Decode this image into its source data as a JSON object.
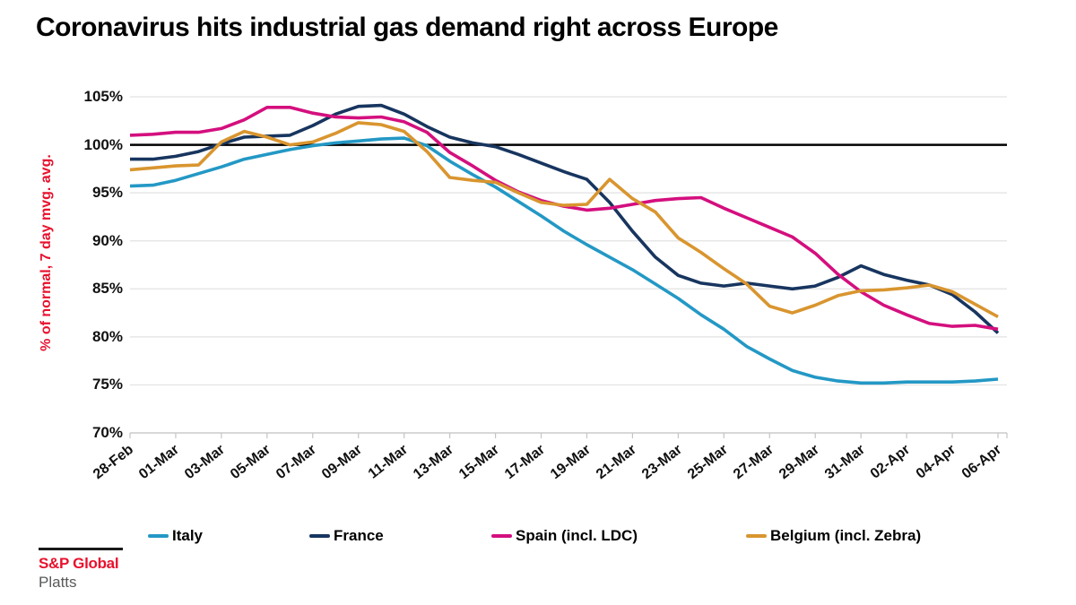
{
  "title": "Coronavirus hits industrial gas demand right across Europe",
  "colors": {
    "italy": "#2398c5",
    "france": "#17355f",
    "spain": "#d40f7e",
    "belgium": "#d9952f",
    "accent_red": "#e8112d",
    "reference_line": "#000000",
    "gridline": "#e2e2e2",
    "axis": "#c4c4c4"
  },
  "y_axis": {
    "label": "% of normal, 7 day mvg. avg.",
    "ticks": [
      "105%",
      "100%",
      "95%",
      "90%",
      "85%",
      "80%",
      "75%",
      "70%"
    ]
  },
  "x_axis": {
    "labels": [
      "28-Feb",
      "01-Mar",
      "03-Mar",
      "05-Mar",
      "07-Mar",
      "09-Mar",
      "11-Mar",
      "13-Mar",
      "15-Mar",
      "17-Mar",
      "19-Mar",
      "21-Mar",
      "23-Mar",
      "25-Mar",
      "27-Mar",
      "29-Mar",
      "31-Mar",
      "02-Apr",
      "04-Apr",
      "06-Apr"
    ]
  },
  "legend": [
    {
      "key": "italy",
      "label": "Italy"
    },
    {
      "key": "france",
      "label": "France"
    },
    {
      "key": "spain",
      "label": "Spain (incl. LDC)"
    },
    {
      "key": "belgium",
      "label": "Belgium (incl. Zebra)"
    }
  ],
  "branding": {
    "line1": "S&P Global",
    "line2": "Platts"
  },
  "chart_data": {
    "type": "line",
    "title": "Coronavirus hits industrial gas demand right across Europe",
    "ylabel": "% of normal, 7 day mvg. avg.",
    "ylim": [
      70,
      105
    ],
    "reference_line": 100,
    "grid": "horizontal",
    "legend_position": "bottom",
    "dates": [
      "28-Feb",
      "29-Feb",
      "01-Mar",
      "02-Mar",
      "03-Mar",
      "04-Mar",
      "05-Mar",
      "06-Mar",
      "07-Mar",
      "08-Mar",
      "09-Mar",
      "10-Mar",
      "11-Mar",
      "12-Mar",
      "13-Mar",
      "14-Mar",
      "15-Mar",
      "16-Mar",
      "17-Mar",
      "18-Mar",
      "19-Mar",
      "20-Mar",
      "21-Mar",
      "22-Mar",
      "23-Mar",
      "24-Mar",
      "25-Mar",
      "26-Mar",
      "27-Mar",
      "28-Mar",
      "29-Mar",
      "30-Mar",
      "31-Mar",
      "01-Apr",
      "02-Apr",
      "03-Apr",
      "04-Apr",
      "05-Apr",
      "06-Apr"
    ],
    "series": [
      {
        "name": "Italy",
        "key": "italy",
        "values": [
          95.7,
          95.8,
          96.3,
          97.0,
          97.7,
          98.5,
          99.0,
          99.5,
          99.9,
          100.2,
          100.4,
          100.6,
          100.7,
          99.9,
          98.3,
          96.9,
          95.6,
          94.1,
          92.6,
          91.0,
          89.6,
          88.3,
          87.0,
          85.5,
          84.0,
          82.3,
          80.8,
          79.0,
          77.7,
          76.5,
          75.8,
          75.4,
          75.2,
          75.2,
          75.3,
          75.3,
          75.3,
          75.4,
          75.6
        ]
      },
      {
        "name": "France",
        "key": "france",
        "values": [
          98.5,
          98.5,
          98.8,
          99.3,
          100.1,
          100.8,
          100.9,
          101.0,
          102.0,
          103.2,
          104.0,
          104.1,
          103.2,
          101.9,
          100.8,
          100.2,
          99.8,
          99.0,
          98.1,
          97.2,
          96.4,
          94.0,
          91.0,
          88.3,
          86.4,
          85.6,
          85.3,
          85.6,
          85.3,
          85.0,
          85.3,
          86.2,
          87.4,
          86.5,
          85.9,
          85.4,
          84.4,
          82.6,
          80.4
        ]
      },
      {
        "name": "Spain (incl. LDC)",
        "key": "spain",
        "values": [
          101.0,
          101.1,
          101.3,
          101.3,
          101.7,
          102.6,
          103.9,
          103.9,
          103.3,
          102.9,
          102.8,
          102.9,
          102.4,
          101.3,
          99.2,
          97.8,
          96.3,
          95.1,
          94.2,
          93.6,
          93.2,
          93.4,
          93.8,
          94.2,
          94.4,
          94.5,
          93.4,
          92.4,
          91.4,
          90.4,
          88.7,
          86.5,
          84.7,
          83.3,
          82.3,
          81.4,
          81.1,
          81.2,
          80.8
        ]
      },
      {
        "name": "Belgium (incl. Zebra)",
        "key": "belgium",
        "values": [
          97.4,
          97.6,
          97.8,
          97.9,
          100.3,
          101.4,
          100.8,
          100.0,
          100.3,
          101.2,
          102.3,
          102.1,
          101.4,
          99.3,
          96.6,
          96.3,
          96.1,
          95.0,
          94.0,
          93.7,
          93.8,
          96.4,
          94.4,
          93.0,
          90.3,
          88.8,
          87.1,
          85.5,
          83.2,
          82.5,
          83.3,
          84.3,
          84.8,
          84.9,
          85.1,
          85.4,
          84.7,
          83.4,
          82.1
        ]
      }
    ]
  }
}
